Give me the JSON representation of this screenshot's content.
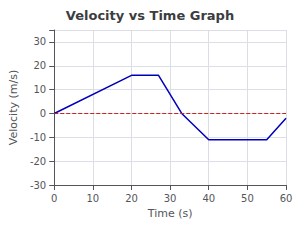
{
  "chart_data": {
    "type": "line",
    "title": "Velocity vs Time Graph",
    "xlabel": "Time (s)",
    "ylabel": "Velocity (m/s)",
    "x": [
      0,
      20,
      27,
      33,
      40,
      55,
      60
    ],
    "values": [
      0,
      16,
      16,
      0,
      -11,
      -11,
      -2
    ],
    "color": "#0000bb",
    "xlim": [
      0,
      60
    ],
    "ylim": [
      -30,
      35
    ],
    "xticks": [
      0,
      10,
      20,
      30,
      40,
      50,
      60
    ],
    "yticks": [
      -30,
      -20,
      -10,
      0,
      10,
      20,
      30
    ],
    "grid": true,
    "reference_line": {
      "y": 0,
      "color": "#cc2222",
      "line_style": "dashed"
    }
  }
}
